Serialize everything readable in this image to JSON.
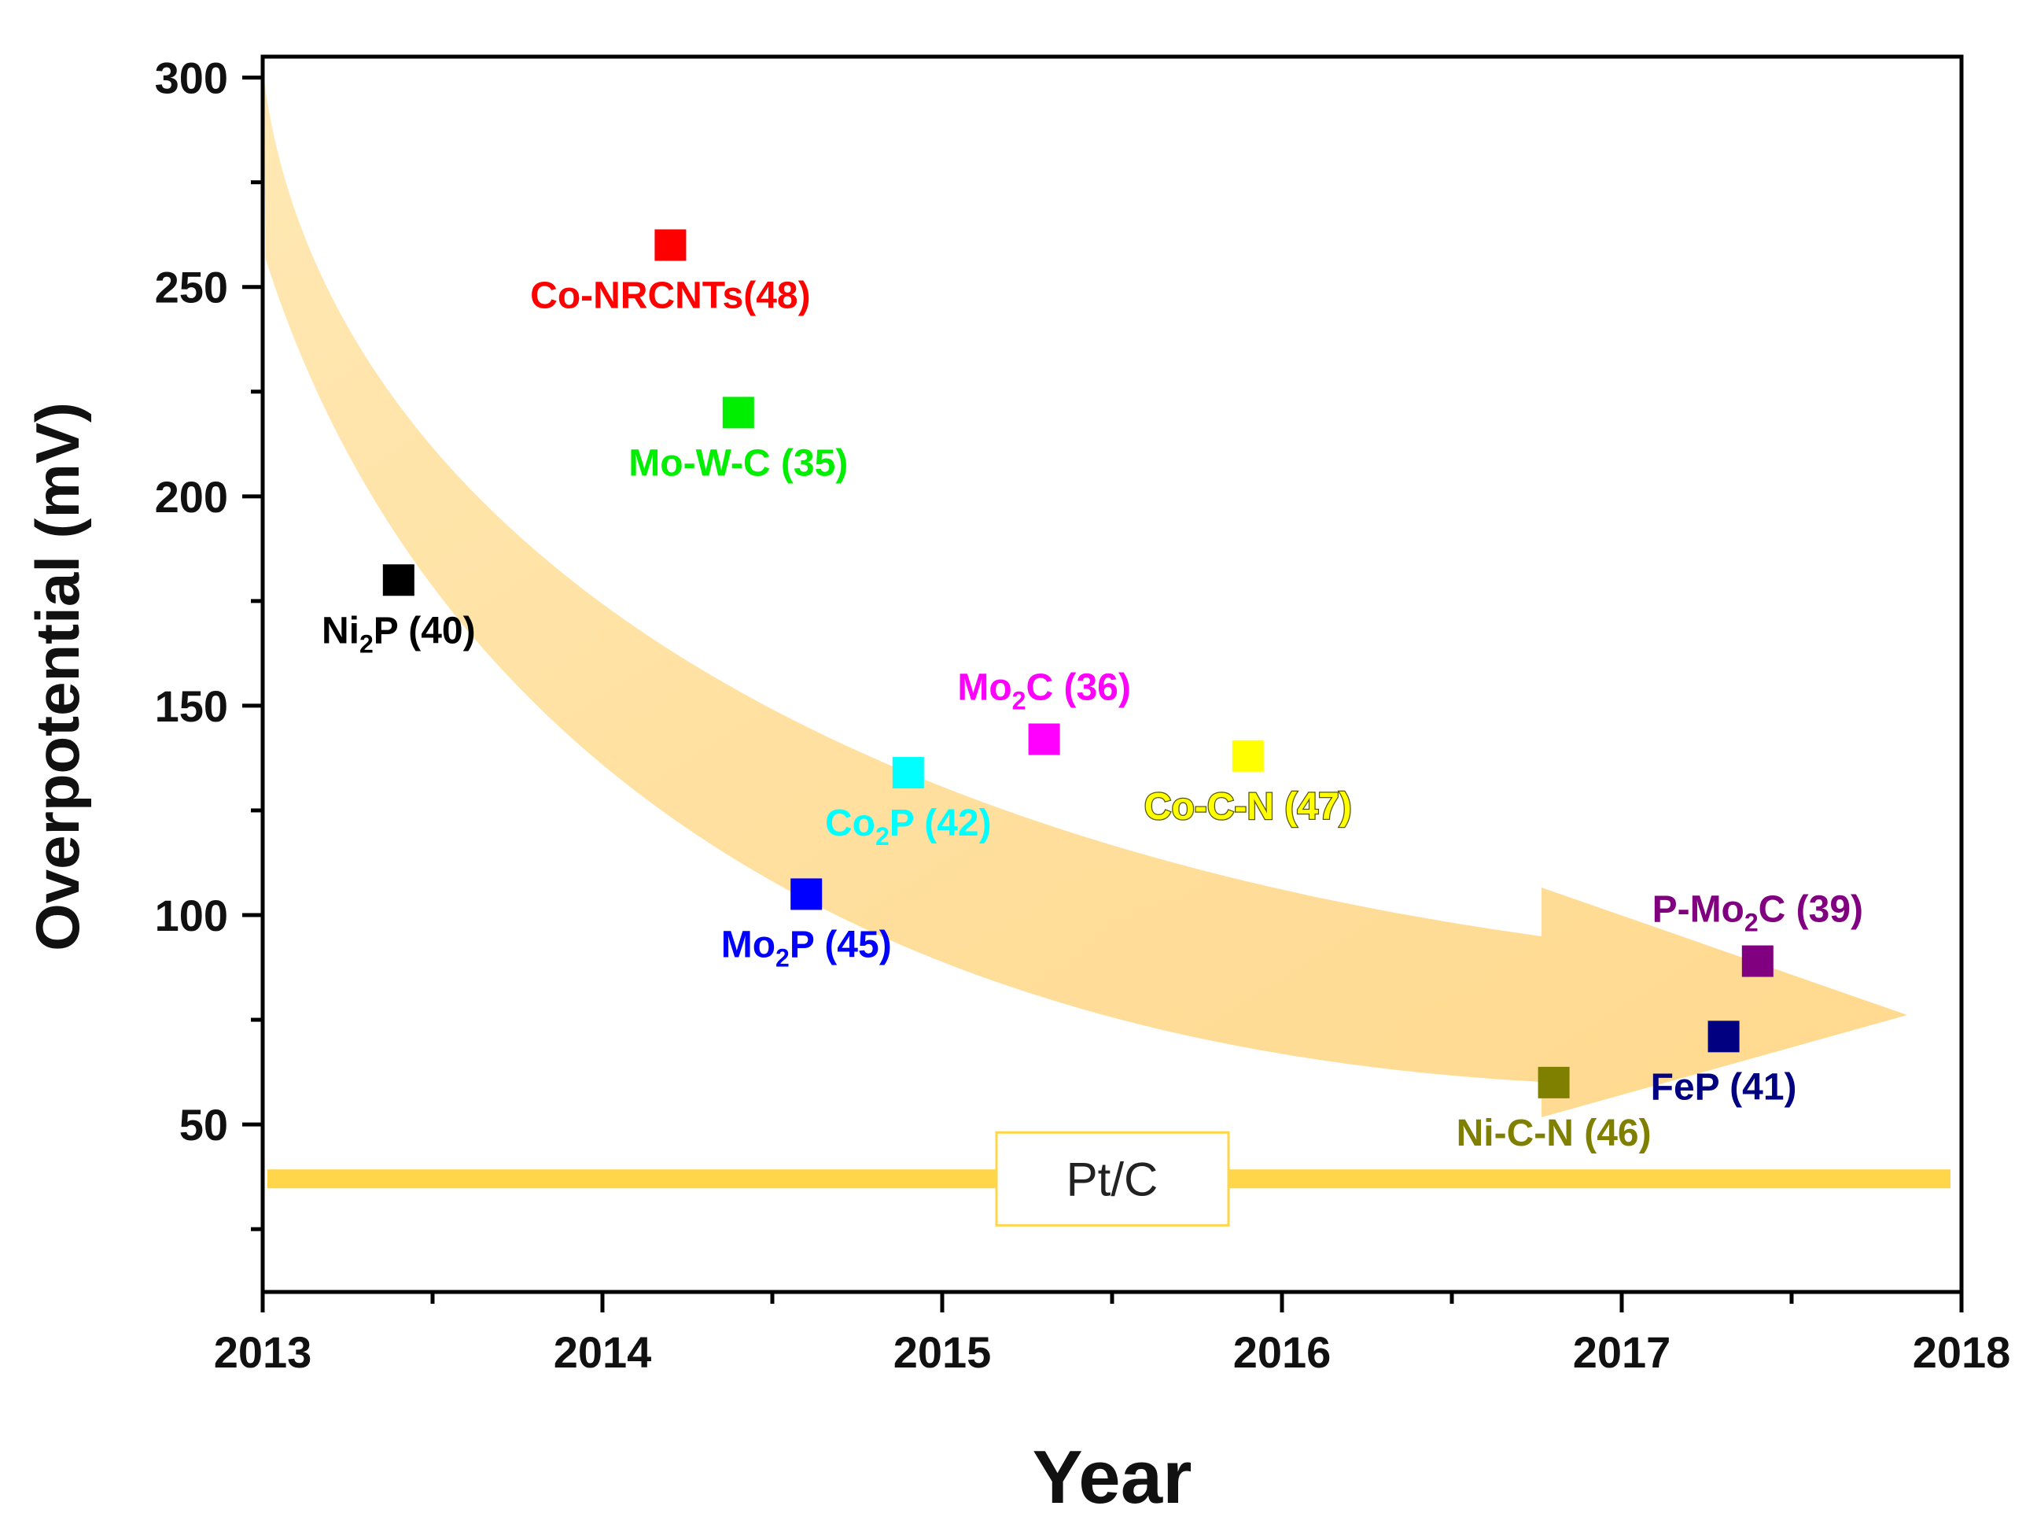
{
  "chart_data": {
    "type": "scatter",
    "title": "",
    "xlabel": "Year",
    "ylabel": "Overpotential (mV)",
    "xlim": [
      2013,
      2018
    ],
    "ylim": [
      10,
      305
    ],
    "x_ticks": [
      2013,
      2014,
      2015,
      2016,
      2017,
      2018
    ],
    "x_minor_ticks": [
      2013.5,
      2014.5,
      2015.5,
      2016.5,
      2017.5
    ],
    "y_ticks": [
      50,
      100,
      150,
      200,
      250,
      300
    ],
    "grid": false,
    "series": [
      {
        "name": "Ni2P",
        "label_main": "Ni",
        "label_sub": "2",
        "label_rest": "P (40)",
        "x": 2013.4,
        "y": 180,
        "color": "#000000",
        "label_side": "below"
      },
      {
        "name": "Co-NRCNTs",
        "label_main": "Co-NRCNTs(48)",
        "label_sub": "",
        "label_rest": "",
        "x": 2014.2,
        "y": 260,
        "color": "#ff0000",
        "label_side": "below"
      },
      {
        "name": "Mo-W-C",
        "label_main": "Mo-W-C (35)",
        "label_sub": "",
        "label_rest": "",
        "x": 2014.4,
        "y": 220,
        "color": "#00ee00",
        "label_side": "below"
      },
      {
        "name": "Mo2P",
        "label_main": "Mo",
        "label_sub": "2",
        "label_rest": "P (45)",
        "x": 2014.6,
        "y": 105,
        "color": "#0000ff",
        "label_side": "below"
      },
      {
        "name": "Co2P",
        "label_main": "Co",
        "label_sub": "2",
        "label_rest": "P (42)",
        "x": 2014.9,
        "y": 134,
        "color": "#00ffff",
        "label_side": "below"
      },
      {
        "name": "Mo2C",
        "label_main": "Mo",
        "label_sub": "2",
        "label_rest": "C (36)",
        "x": 2015.3,
        "y": 142,
        "color": "#ff00ff",
        "label_side": "above"
      },
      {
        "name": "Co-C-N",
        "label_main": "Co-C-N (47)",
        "label_sub": "",
        "label_rest": "",
        "x": 2015.9,
        "y": 138,
        "color": "#ffff00",
        "label_side": "below"
      },
      {
        "name": "Ni-C-N",
        "label_main": "Ni-C-N (46)",
        "label_sub": "",
        "label_rest": "",
        "x": 2016.8,
        "y": 60,
        "color": "#808000",
        "label_side": "below"
      },
      {
        "name": "FeP",
        "label_main": "FeP (41)",
        "label_sub": "",
        "label_rest": "",
        "x": 2017.3,
        "y": 71,
        "color": "#000080",
        "label_side": "below"
      },
      {
        "name": "P-Mo2C",
        "label_main": "P-Mo",
        "label_sub": "2",
        "label_rest": "C (39)",
        "x": 2017.4,
        "y": 89,
        "color": "#800080",
        "label_side": "above"
      }
    ],
    "reference_line": {
      "label": "Pt/C",
      "y": 37,
      "color": "#ffd54a"
    },
    "trend_arrow": {
      "color": "#ffd580",
      "direction": "decreasing"
    }
  }
}
